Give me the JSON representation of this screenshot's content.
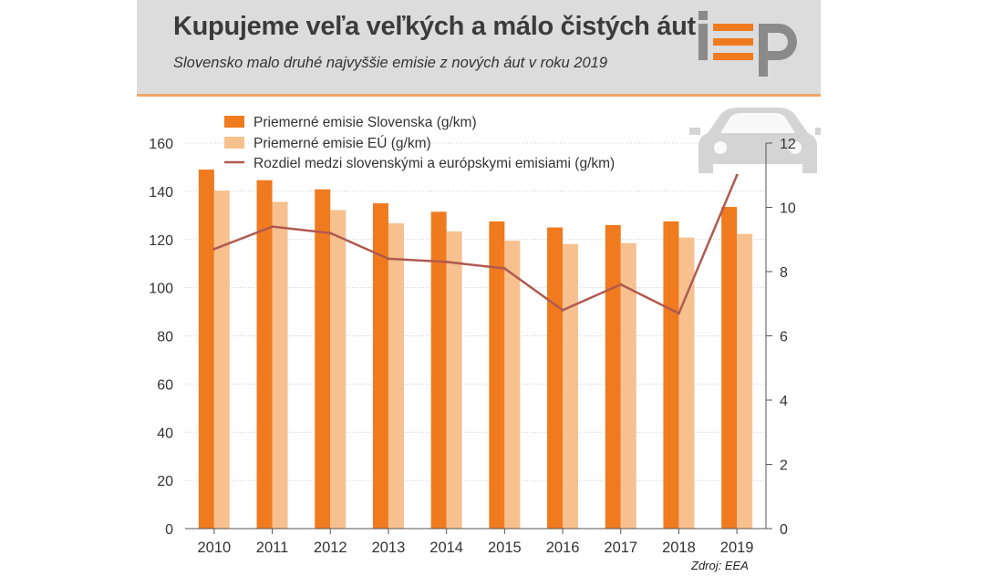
{
  "header": {
    "title": "Kupujeme veľa veľkých a málo čistých áut",
    "subtitle": "Slovensko malo druhé najvyššie emisie z nových áut v roku 2019"
  },
  "source": "Zdroj: EEA",
  "logo": {
    "name": "iep-logo",
    "icon": "car-icon"
  },
  "colors": {
    "slovakia": "#f07a1e",
    "eu": "#f7c08f",
    "difference": "#b05a50",
    "logo_gray": "#8a8a8a",
    "logo_orange": "#f07a1e"
  },
  "chart_data": {
    "type": "bar",
    "categories": [
      "2010",
      "2011",
      "2012",
      "2013",
      "2014",
      "2015",
      "2016",
      "2017",
      "2018",
      "2019"
    ],
    "series": [
      {
        "name": "Priemerné emisie Slovenska (g/km)",
        "kind": "bar",
        "axis": "left",
        "values": [
          149,
          144.6,
          140.8,
          135,
          131.5,
          127.5,
          125,
          126,
          127.5,
          133.5
        ]
      },
      {
        "name": "Priemerné emisie EÚ (g/km)",
        "kind": "bar",
        "axis": "left",
        "values": [
          140.3,
          135.6,
          132.2,
          126.7,
          123.4,
          119.5,
          118.1,
          118.5,
          120.8,
          122.3
        ]
      },
      {
        "name": "Rozdiel medzi slovenskými a európskymi emisiami (g/km)",
        "kind": "line",
        "axis": "right",
        "values": [
          8.7,
          9.4,
          9.2,
          8.4,
          8.3,
          8.1,
          6.8,
          7.6,
          6.7,
          11
        ]
      }
    ],
    "y_left": {
      "min": 0,
      "max": 160,
      "ticks": [
        0,
        20,
        40,
        60,
        80,
        100,
        120,
        140,
        160
      ]
    },
    "y_right": {
      "min": 0,
      "max": 12,
      "ticks": [
        0,
        2,
        4,
        6,
        8,
        10,
        12
      ]
    },
    "grid": true,
    "legend_position": "top-left"
  }
}
